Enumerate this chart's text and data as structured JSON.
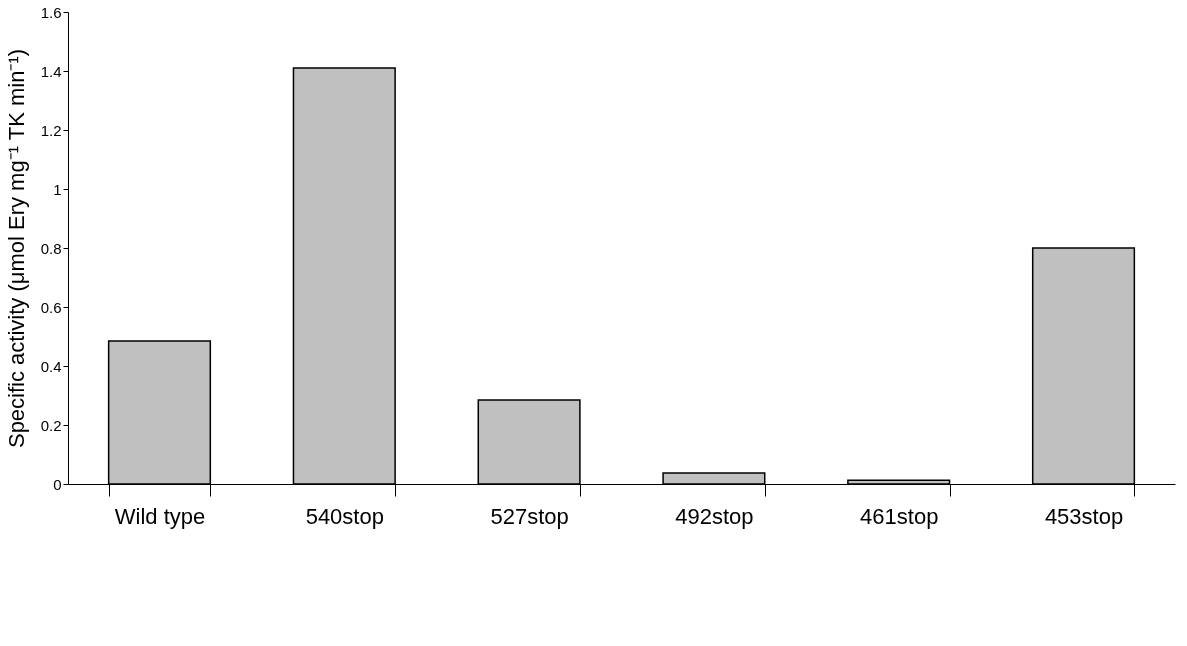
{
  "chart_data": {
    "type": "bar",
    "categories": [
      "Wild type",
      "540stop",
      "527stop",
      "492stop",
      "461stop",
      "453stop"
    ],
    "values": [
      0.485,
      1.41,
      0.285,
      0.037,
      0.013,
      0.8
    ],
    "color": "#c0c0c0",
    "ylabel": "Specific activity (μmol Ery mg⁻¹ TK min⁻¹)",
    "ylim": [
      0,
      1.6
    ],
    "yticks": [
      0,
      0.2,
      0.4,
      0.6,
      0.8,
      1,
      1.2,
      1.4,
      1.6
    ],
    "grid": false
  }
}
